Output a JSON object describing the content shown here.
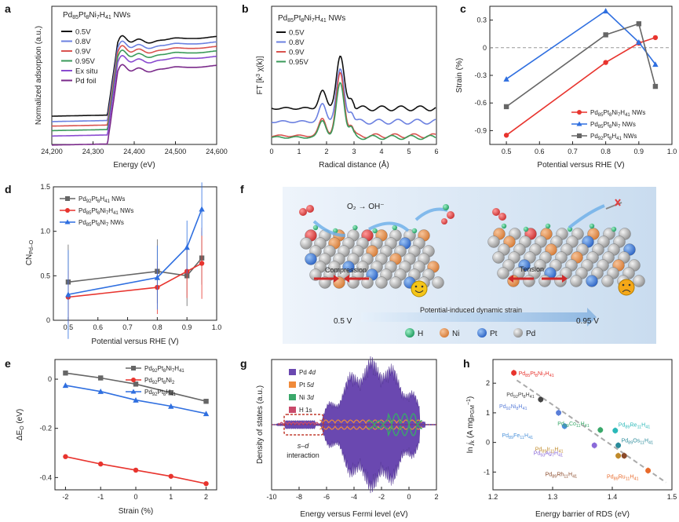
{
  "panels": {
    "a": {
      "label": "a",
      "title": "Pd85Pt8Ni7H41 NWs",
      "xlabel": "Energy (eV)",
      "ylabel": "Normalized adsorption (a.u.)",
      "xticks": [
        "24,200",
        "24,300",
        "24,400",
        "24,500",
        "24,600"
      ],
      "legend": [
        "0.5V",
        "0.8V",
        "0.9V",
        "0.95V",
        "Ex situ",
        "Pd foil"
      ],
      "colors": [
        "#111111",
        "#6b80e0",
        "#d9534f",
        "#3a9a5a",
        "#8a4bd0",
        "#7a2a8a"
      ]
    },
    "b": {
      "label": "b",
      "title": "Pd85Pt8Ni7H41 NWs",
      "xlabel": "Radical distance (Å)",
      "ylabel": "FT [k³ χ(k)]",
      "xticks": [
        "0",
        "1",
        "2",
        "3",
        "4",
        "5",
        "6"
      ],
      "legend": [
        "0.5V",
        "0.8V",
        "0.9V",
        "0.95V"
      ],
      "colors": [
        "#111111",
        "#6b80e0",
        "#d9534f",
        "#3a9a5a"
      ]
    },
    "c": {
      "label": "c",
      "xlabel": "Potential versus RHE (V)",
      "ylabel": "Strain (%)",
      "xticks": [
        "0.5",
        "0.6",
        "0.7",
        "0.8",
        "0.9",
        "1.0"
      ],
      "yticks": [
        "0.3",
        "0",
        "-0.3",
        "-0.6",
        "-0.9"
      ],
      "legend": [
        "Pd85Pt8Ni7H41 NWs",
        "Pd85Pt8Ni7 NWs",
        "Pd92Pt8H41 NWs"
      ]
    },
    "d": {
      "label": "d",
      "xlabel": "Potential versus RHE (V)",
      "ylabel": "CNPd–O",
      "xticks": [
        "0.5",
        "0.6",
        "0.7",
        "0.8",
        "0.9",
        "1.0"
      ],
      "yticks": [
        "0",
        "0.5",
        "1.0",
        "1.5"
      ],
      "legend": [
        "Pd92Pt8H41 NWs",
        "Pd85Pt8Ni7H41 NWs",
        "Pd85Pt8Ni7 NWs"
      ]
    },
    "e": {
      "label": "e",
      "xlabel": "Strain (%)",
      "ylabel": "ΔE_O (eV)",
      "xticks": [
        "-2",
        "-1",
        "0",
        "1",
        "2"
      ],
      "yticks": [
        "0",
        "-0.2",
        "-0.4"
      ],
      "legend": [
        "Pd92Pt8Ni7H41",
        "Pd92Pt8Ni2",
        "Pd92Pt8H41"
      ]
    },
    "f": {
      "label": "f",
      "reaction": "O₂ → OH⁻",
      "compression": "Compression",
      "tension": "Tension",
      "arrow_text": "Potential-induced dynamic strain",
      "left_v": "0.5 V",
      "right_v": "0.95 V",
      "atoms": [
        "H",
        "Ni",
        "Pt",
        "Pd"
      ]
    },
    "g": {
      "label": "g",
      "xlabel": "Energy versus Fermi level (eV)",
      "ylabel": "Density of states (a.u.)",
      "xticks": [
        "-10",
        "-8",
        "-6",
        "-4",
        "-2",
        "0",
        "2"
      ],
      "legend": [
        "Pd 4d",
        "Pt 5d",
        "Ni 3d",
        "H 1s"
      ],
      "annotation": "s–d\ninteraction"
    },
    "h": {
      "label": "h",
      "xlabel": "Energy barrier of RDS (eV)",
      "ylabel": "ln jk (A mgPGM⁻¹)",
      "xticks": [
        "1.2",
        "1.3",
        "1.4",
        "1.5"
      ],
      "yticks": [
        "2",
        "1",
        "0",
        "-1"
      ]
    }
  },
  "chart_data": [
    {
      "panel": "a",
      "type": "line",
      "title": "Pd85Pt8Ni7H41 NWs",
      "xlabel": "Energy (eV)",
      "ylabel": "Normalized adsorption (a.u.)",
      "xlim": [
        24200,
        24600
      ],
      "series": [
        {
          "name": "0.5V"
        },
        {
          "name": "0.8V"
        },
        {
          "name": "0.9V"
        },
        {
          "name": "0.95V"
        },
        {
          "name": "Ex situ"
        },
        {
          "name": "Pd foil"
        }
      ]
    },
    {
      "panel": "b",
      "type": "line",
      "title": "Pd85Pt8Ni7H41 NWs",
      "xlabel": "Radical distance (Å)",
      "ylabel": "FT [k³ χ(k)]",
      "xlim": [
        0,
        6
      ],
      "series": [
        {
          "name": "0.5V"
        },
        {
          "name": "0.8V"
        },
        {
          "name": "0.9V"
        },
        {
          "name": "0.95V"
        }
      ]
    },
    {
      "panel": "c",
      "type": "line",
      "xlabel": "Potential versus RHE (V)",
      "ylabel": "Strain (%)",
      "xlim": [
        0.45,
        1.0
      ],
      "ylim": [
        -1.05,
        0.45
      ],
      "series": [
        {
          "name": "Pd85Pt8Ni7H41 NWs",
          "color": "#e8342e",
          "marker": "circle",
          "x": [
            0.5,
            0.8,
            0.9,
            0.95
          ],
          "y": [
            -0.95,
            -0.16,
            0.05,
            0.11
          ]
        },
        {
          "name": "Pd85Pt8Ni7 NWs",
          "color": "#2f6fe0",
          "marker": "triangle",
          "x": [
            0.5,
            0.8,
            0.9,
            0.95
          ],
          "y": [
            -0.34,
            0.4,
            0.06,
            -0.18
          ]
        },
        {
          "name": "Pd92Pt8H41 NWs",
          "color": "#666666",
          "marker": "square",
          "x": [
            0.5,
            0.8,
            0.9,
            0.95
          ],
          "y": [
            -0.64,
            0.14,
            0.26,
            -0.42
          ]
        }
      ]
    },
    {
      "panel": "d",
      "type": "line",
      "xlabel": "Potential versus RHE (V)",
      "ylabel": "CNPd-O",
      "xlim": [
        0.45,
        1.0
      ],
      "ylim": [
        0,
        1.5
      ],
      "series": [
        {
          "name": "Pd92Pt8H41 NWs",
          "color": "#666666",
          "marker": "square",
          "x": [
            0.5,
            0.8,
            0.9,
            0.95
          ],
          "y": [
            0.43,
            0.55,
            0.5,
            0.7
          ],
          "err": [
            0.42,
            0.36,
            0.34,
            0.3
          ]
        },
        {
          "name": "Pd85Pt8Ni7H41 NWs",
          "color": "#e8342e",
          "marker": "circle",
          "x": [
            0.5,
            0.8,
            0.9,
            0.95
          ],
          "y": [
            0.26,
            0.37,
            0.55,
            0.64
          ],
          "err": [
            0.3,
            0.3,
            0.3,
            0.4
          ]
        },
        {
          "name": "Pd85Pt8Ni7 NWs",
          "color": "#2f6fe0",
          "marker": "triangle",
          "x": [
            0.5,
            0.8,
            0.9,
            0.95
          ],
          "y": [
            0.29,
            0.48,
            0.82,
            1.25
          ],
          "err": [
            0.5,
            0.36,
            0.3,
            0.3
          ]
        }
      ]
    },
    {
      "panel": "e",
      "type": "line",
      "xlabel": "Strain (%)",
      "ylabel": "ΔEO (eV)",
      "xlim": [
        -2.3,
        2.3
      ],
      "ylim": [
        -0.45,
        0.08
      ],
      "series": [
        {
          "name": "Pd92Pt8Ni7H41",
          "color": "#666666",
          "marker": "square",
          "x": [
            -2,
            -1,
            0,
            1,
            2
          ],
          "y": [
            0.025,
            0.005,
            -0.02,
            -0.055,
            -0.09
          ]
        },
        {
          "name": "Pd92Pt8Ni2",
          "color": "#e8342e",
          "marker": "circle",
          "x": [
            -2,
            -1,
            0,
            1,
            2
          ],
          "y": [
            -0.315,
            -0.345,
            -0.37,
            -0.395,
            -0.425
          ]
        },
        {
          "name": "Pd92Pt8H41",
          "color": "#2f6fe0",
          "marker": "triangle",
          "x": [
            -2,
            -1,
            0,
            1,
            2
          ],
          "y": [
            -0.025,
            -0.05,
            -0.085,
            -0.11,
            -0.14
          ]
        }
      ]
    },
    {
      "panel": "g",
      "type": "area",
      "xlabel": "Energy versus Fermi level (eV)",
      "ylabel": "Density of states (a.u.)",
      "xlim": [
        -10,
        2
      ],
      "series": [
        {
          "name": "Pd 4d",
          "color": "#6a48b0"
        },
        {
          "name": "Pt 5d",
          "color": "#f08a3a"
        },
        {
          "name": "Ni 3d",
          "color": "#3aa86a"
        },
        {
          "name": "H 1s",
          "color": "#c94a6a"
        }
      ]
    },
    {
      "panel": "h",
      "type": "scatter",
      "xlabel": "Energy barrier of RDS (eV)",
      "ylabel": "ln jk (A mgPGM-1)",
      "xlim": [
        1.2,
        1.5
      ],
      "ylim": [
        -1.6,
        2.8
      ],
      "points": [
        {
          "label": "Pd85Pt8Ni7H41",
          "x": 1.235,
          "y": 2.35,
          "color": "#e8342e"
        },
        {
          "label": "Pd92Pt8H41",
          "x": 1.28,
          "y": 1.45,
          "color": "#444444"
        },
        {
          "label": "Pd92Ni8H41",
          "x": 1.31,
          "y": 1.0,
          "color": "#5a7ed8"
        },
        {
          "label": "Pd89Fe11H41",
          "x": 1.32,
          "y": 0.55,
          "color": "#4a90d9"
        },
        {
          "label": "Pd89Co11H41",
          "x": 1.38,
          "y": 0.42,
          "color": "#3aa86a"
        },
        {
          "label": "Pd89Re11H41",
          "x": 1.405,
          "y": 0.4,
          "color": "#2ab8b8"
        },
        {
          "label": "Pd89Os11H41",
          "x": 1.41,
          "y": -0.1,
          "color": "#2a8a9a"
        },
        {
          "label": "Pd93Ag7H41",
          "x": 1.37,
          "y": -0.1,
          "color": "#8a6ad9"
        },
        {
          "label": "Pd89Ir11H41",
          "x": 1.41,
          "y": -0.45,
          "color": "#c08a2a"
        },
        {
          "label": "Pd89Rh11H41",
          "x": 1.42,
          "y": -0.45,
          "color": "#8a4a2a"
        },
        {
          "label": "Pd89Ru11H41",
          "x": 1.46,
          "y": -0.95,
          "color": "#e86a2a"
        }
      ]
    }
  ]
}
